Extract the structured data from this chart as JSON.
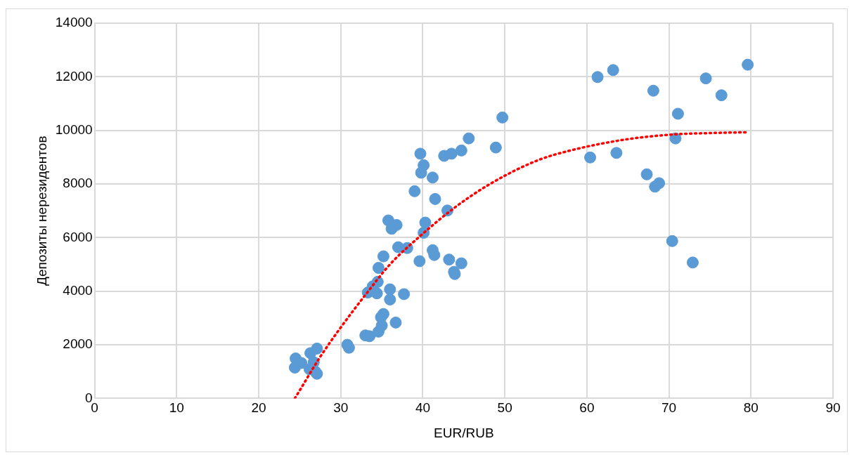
{
  "chart_data": {
    "type": "scatter",
    "xlabel": "EUR/RUB",
    "ylabel": "Депозиты нерезидентов",
    "xlim": [
      0,
      90
    ],
    "xticks": [
      0,
      10,
      20,
      30,
      40,
      50,
      60,
      70,
      80,
      90
    ],
    "ylim": [
      0,
      14000
    ],
    "yticks": [
      0,
      2000,
      4000,
      6000,
      8000,
      10000,
      12000,
      14000
    ],
    "grid": true,
    "legend": false,
    "marker": "circle",
    "series": [
      {
        "color": "#5b9bd5",
        "x": [
          24.4,
          24.5,
          25.2,
          26.3,
          26.9,
          27.1,
          26.2,
          26.7,
          27.1,
          30.8,
          31,
          33,
          33.5,
          34.6,
          35,
          34.9,
          35.2,
          36.7,
          37.7,
          36,
          36,
          33.3,
          34.4,
          33.9,
          34.5,
          34.6,
          35.2,
          37,
          38.1,
          39.6,
          35.8,
          36.2,
          36.8,
          40.1,
          40.3,
          39,
          39.7,
          39.8,
          40.1,
          41.2,
          41.5,
          43,
          41.2,
          41.4,
          43.2,
          43.8,
          43.9,
          44.7,
          42.6,
          43.5,
          44.7,
          45.6,
          48.9,
          49.7,
          60.4,
          61.3,
          63.2,
          63.6,
          68.1,
          67.3,
          68.3,
          68.8,
          70.8,
          71.1,
          70.4,
          72.9,
          74.5,
          76.4,
          79.6
        ],
        "values": [
          1150,
          1490,
          1320,
          1690,
          1000,
          1860,
          1090,
          1350,
          920,
          2000,
          1890,
          2350,
          2320,
          2490,
          2720,
          3030,
          3150,
          2830,
          3890,
          3690,
          4070,
          3950,
          3920,
          4180,
          4350,
          4870,
          5300,
          5640,
          5610,
          5120,
          6640,
          6330,
          6470,
          6180,
          6560,
          7730,
          9130,
          8420,
          8700,
          8240,
          7440,
          7010,
          5530,
          5350,
          5180,
          4720,
          4640,
          5040,
          9050,
          9130,
          9250,
          9700,
          9360,
          10480,
          8990,
          11990,
          12250,
          9160,
          11480,
          8360,
          7900,
          8030,
          9700,
          10620,
          5870,
          5070,
          11940,
          11310,
          12450
        ]
      },
      {
        "type": "line",
        "color": "#ff0000",
        "marker": "none",
        "line_style": "dotted",
        "x": [
          24.4,
          25.2,
          27.3,
          30.1,
          33,
          36,
          39.5,
          43.8,
          48.3,
          53.9,
          57.6,
          64.5,
          70.6,
          75,
          79.6
        ],
        "values": [
          0,
          400,
          1460,
          2690,
          3860,
          5000,
          6010,
          7100,
          8020,
          8870,
          9220,
          9650,
          9850,
          9900,
          9930
        ]
      }
    ]
  }
}
